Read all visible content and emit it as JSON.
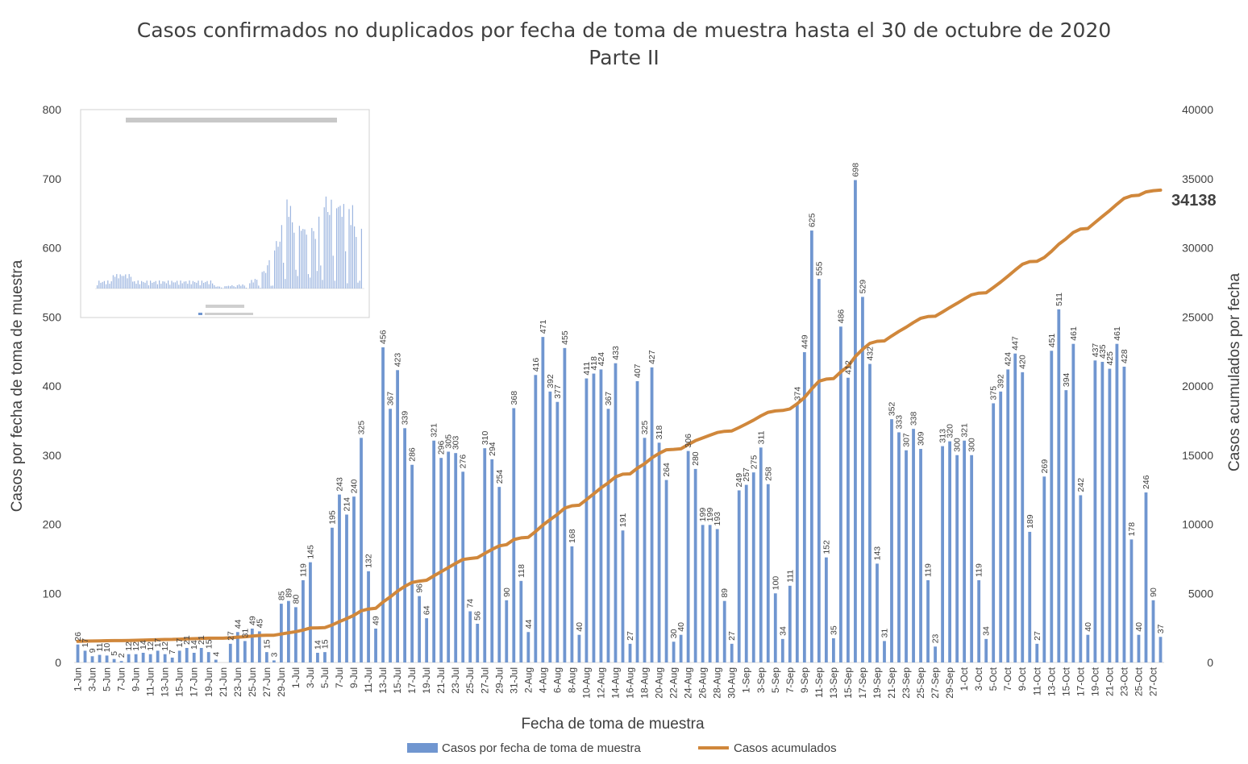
{
  "chart_data": {
    "type": "bar+line",
    "title": "Casos confirmados no duplicados por fecha de toma de muestra hasta el 30 de octubre de 2020",
    "subtitle": "Parte II",
    "xlabel": "Fecha de toma de muestra",
    "ylabel_left": "Casos por fecha de toma de muestra",
    "ylabel_right": "Casos acumulados por fecha",
    "ylim_left": [
      0,
      800
    ],
    "yticks_left": [
      "0",
      "100",
      "200",
      "300",
      "400",
      "500",
      "600",
      "700",
      "800"
    ],
    "ylim_right": [
      0,
      40000
    ],
    "yticks_right": [
      "0",
      "5000",
      "10000",
      "15000",
      "20000",
      "25000",
      "30000",
      "35000",
      "40000"
    ],
    "x_tick_labels": [
      "1-Jun",
      "3-Jun",
      "5-Jun",
      "7-Jun",
      "9-Jun",
      "11-Jun",
      "13-Jun",
      "15-Jun",
      "17-Jun",
      "19-Jun",
      "21-Jun",
      "23-Jun",
      "25-Jun",
      "27-Jun",
      "29-Jun",
      "1-Jul",
      "3-Jul",
      "5-Jul",
      "7-Jul",
      "9-Jul",
      "11-Jul",
      "13-Jul",
      "15-Jul",
      "17-Jul",
      "19-Jul",
      "21-Jul",
      "23-Jul",
      "25-Jul",
      "27-Jul",
      "29-Jul",
      "31-Jul",
      "2-Aug",
      "4-Aug",
      "6-Aug",
      "8-Aug",
      "10-Aug",
      "12-Aug",
      "14-Aug",
      "16-Aug",
      "18-Aug",
      "20-Aug",
      "22-Aug",
      "24-Aug",
      "26-Aug",
      "28-Aug",
      "30-Aug",
      "1-Sep",
      "3-Sep",
      "5-Sep",
      "7-Sep",
      "9-Sep",
      "11-Sep",
      "13-Sep",
      "15-Sep",
      "17-Sep",
      "19-Sep",
      "21-Sep",
      "23-Sep",
      "25-Sep",
      "27-Sep",
      "29-Sep",
      "1-Oct",
      "3-Oct",
      "5-Oct",
      "7-Oct",
      "9-Oct",
      "11-Oct",
      "13-Oct",
      "15-Oct",
      "17-Oct",
      "19-Oct",
      "21-Oct",
      "23-Oct",
      "25-Oct",
      "27-Oct"
    ],
    "series": [
      {
        "name": "Casos por fecha de toma de muestra",
        "type": "bar",
        "color": "#7096d0",
        "values": [
          26,
          17,
          9,
          11,
          10,
          5,
          2,
          12,
          12,
          14,
          12,
          17,
          12,
          7,
          17,
          21,
          14,
          21,
          15,
          4,
          0,
          27,
          44,
          31,
          49,
          45,
          15,
          3,
          85,
          89,
          80,
          119,
          145,
          14,
          15,
          195,
          243,
          214,
          240,
          325,
          132,
          49,
          456,
          367,
          423,
          339,
          286,
          96,
          64,
          321,
          296,
          305,
          303,
          276,
          74,
          56,
          310,
          294,
          254,
          90,
          368,
          118,
          44,
          416,
          471,
          392,
          377,
          455,
          168,
          40,
          411,
          418,
          424,
          367,
          433,
          191,
          27,
          407,
          325,
          427,
          318,
          264,
          30,
          40,
          306,
          280,
          199,
          199,
          193,
          89,
          27,
          249,
          257,
          275,
          311,
          258,
          100,
          34,
          111,
          374,
          449,
          625,
          555,
          152,
          35,
          486,
          412,
          698,
          529,
          432,
          143,
          31,
          352,
          333,
          307,
          338,
          309,
          119,
          23,
          313,
          320,
          300,
          321,
          300,
          119,
          34,
          375,
          392,
          424,
          447,
          420,
          189,
          27,
          269,
          451,
          511,
          394,
          461,
          242,
          40,
          437,
          435,
          425,
          461,
          428,
          178,
          40,
          246,
          90,
          37
        ]
      },
      {
        "name": "Casos acumulados",
        "type": "line",
        "color": "#d0873b",
        "start_value": 1500,
        "final_label": "34138"
      }
    ],
    "grid": false,
    "legend_position": "bottom"
  }
}
